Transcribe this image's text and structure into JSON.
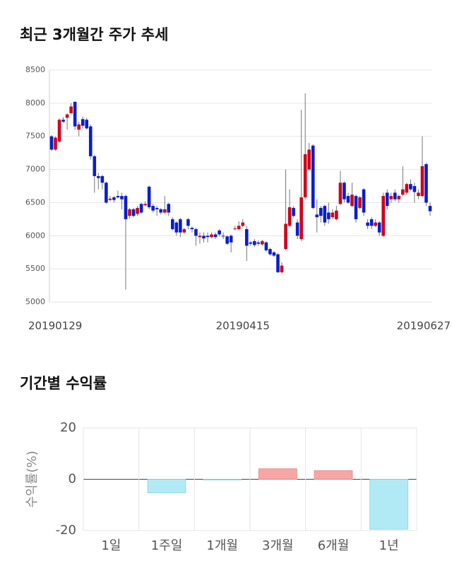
{
  "sections": [
    "최근 3개월간 주가 추세",
    "기간별 수익률"
  ],
  "chart_data": [
    {
      "type": "candlestick",
      "up_color": "#d0021b",
      "down_color": "#0a1ecc",
      "grid": true,
      "ylim": [
        5000,
        8500
      ],
      "yticks": [
        5000,
        5500,
        6000,
        6500,
        7000,
        7500,
        8000,
        8500
      ],
      "categories": [
        "20190129",
        null,
        null,
        null,
        null,
        null,
        null,
        null,
        null,
        null,
        null,
        null,
        null,
        null,
        null,
        null,
        null,
        null,
        null,
        null,
        null,
        null,
        null,
        null,
        null,
        null,
        null,
        null,
        null,
        null,
        null,
        null,
        null,
        null,
        null,
        null,
        null,
        null,
        null,
        null,
        null,
        null,
        null,
        null,
        null,
        null,
        null,
        null,
        null,
        "20190415",
        null,
        null,
        null,
        null,
        null,
        null,
        null,
        null,
        null,
        null,
        null,
        null,
        null,
        null,
        null,
        null,
        null,
        null,
        null,
        null,
        null,
        null,
        null,
        null,
        null,
        null,
        null,
        null,
        null,
        null,
        null,
        null,
        null,
        null,
        null,
        null,
        null,
        null,
        null,
        null,
        null,
        null,
        null,
        null,
        null,
        null,
        null,
        "20190627"
      ],
      "open": [
        7500,
        7300,
        7420,
        7750,
        7780,
        7850,
        8020,
        7600,
        7760,
        7750,
        7650,
        7200,
        6900,
        6900,
        6800,
        6540,
        6580,
        6600,
        6600,
        6600,
        6300,
        6400,
        6330,
        6480,
        6460,
        6740,
        6450,
        6420,
        6400,
        6350,
        6480,
        6250,
        6200,
        6250,
        6050,
        6250,
        6120,
        6100,
        5980,
        6000,
        6000,
        5980,
        6020,
        6080,
        6000,
        5990,
        6000,
        6100,
        6100,
        6150,
        6100,
        5900,
        5920,
        5900,
        5870,
        5900,
        5800,
        5750,
        5720,
        5450,
        5800,
        6150,
        6420,
        6200,
        5950,
        6580,
        7000,
        7360,
        6320,
        6420,
        6450,
        6350,
        6280,
        6250,
        6480,
        6800,
        6600,
        6450,
        6600,
        6420,
        6700,
        6200,
        6250,
        6150,
        6200,
        6000,
        6650,
        6550,
        6650,
        6550,
        6620,
        6650,
        6780,
        6750,
        6600,
        6600,
        7080,
        6450
      ],
      "high": [
        7520,
        7500,
        7770,
        7790,
        7850,
        8000,
        8030,
        7720,
        7800,
        7780,
        7680,
        7220,
        6950,
        6920,
        6820,
        6600,
        6600,
        6680,
        6650,
        6620,
        6420,
        6420,
        6450,
        6500,
        6520,
        6760,
        6480,
        6450,
        6420,
        6600,
        6500,
        6280,
        6220,
        6270,
        6120,
        6270,
        6140,
        6120,
        6050,
        6050,
        6050,
        6050,
        6050,
        6100,
        6050,
        6010,
        6020,
        6150,
        6220,
        6250,
        6150,
        5920,
        5950,
        5930,
        5940,
        5920,
        5820,
        5770,
        5740,
        5600,
        7000,
        6700,
        6450,
        6250,
        7900,
        8150,
        7400,
        7380,
        6550,
        6450,
        6470,
        6500,
        6400,
        6450,
        6980,
        6820,
        6650,
        6800,
        6620,
        6600,
        6720,
        6250,
        6280,
        6250,
        6220,
        6650,
        6700,
        6650,
        6700,
        6620,
        7050,
        6800,
        6850,
        6800,
        6700,
        7500,
        7100,
        6500
      ],
      "low": [
        7280,
        7280,
        7400,
        7700,
        7600,
        7830,
        7600,
        7500,
        7620,
        7600,
        7150,
        6650,
        6700,
        6700,
        6480,
        6520,
        6500,
        6560,
        6400,
        5190,
        6260,
        6280,
        6300,
        6330,
        6440,
        6400,
        6350,
        6300,
        6320,
        6330,
        6300,
        6080,
        6000,
        5980,
        6030,
        6100,
        6050,
        5850,
        5880,
        5900,
        5900,
        5960,
        5950,
        5990,
        5950,
        5860,
        5750,
        6080,
        6080,
        6130,
        5620,
        5850,
        5830,
        5850,
        5850,
        5760,
        5700,
        5680,
        5440,
        5430,
        5780,
        6130,
        6280,
        5950,
        5920,
        6550,
        6980,
        6400,
        6050,
        6200,
        6150,
        6180,
        6250,
        6230,
        6460,
        6500,
        6480,
        6430,
        6200,
        6400,
        6300,
        6100,
        6100,
        6130,
        6000,
        5980,
        6400,
        6500,
        6520,
        6500,
        6600,
        6620,
        6680,
        6500,
        6550,
        6580,
        6450,
        6300
      ],
      "close": [
        7300,
        7480,
        7750,
        7720,
        7830,
        7950,
        7650,
        7680,
        7660,
        7620,
        7200,
        6900,
        6870,
        6800,
        6500,
        6560,
        6540,
        6580,
        6550,
        6250,
        6400,
        6300,
        6420,
        6350,
        6480,
        6430,
        6380,
        6400,
        6350,
        6400,
        6350,
        6100,
        6050,
        6050,
        6100,
        6150,
        6100,
        6000,
        6000,
        5960,
        5980,
        6020,
        5980,
        6020,
        5990,
        5880,
        5900,
        6110,
        6150,
        6200,
        5850,
        5880,
        5860,
        5880,
        5920,
        5780,
        5720,
        5700,
        5450,
        5550,
        6180,
        6430,
        6300,
        6000,
        6580,
        7230,
        7300,
        6420,
        6280,
        6300,
        6200,
        6250,
        6350,
        6380,
        6800,
        6550,
        6500,
        6620,
        6250,
        6580,
        6350,
        6150,
        6150,
        6200,
        6050,
        6600,
        6450,
        6600,
        6550,
        6600,
        6700,
        6780,
        6700,
        6660,
        6650,
        7050,
        6500,
        6370
      ]
    },
    {
      "type": "bar",
      "y_label": "수익률(%)",
      "positive_color": "#f7a6a6",
      "negative_color": "#b1eaf5",
      "grid": true,
      "categories": [
        "1일",
        "1주일",
        "1개월",
        "3개월",
        "6개월",
        "1년"
      ],
      "values": [
        0,
        -5.3,
        -0.3,
        4.1,
        3.4,
        -19.5
      ],
      "ylim": [
        -20,
        20
      ],
      "yticks": [
        -20,
        0,
        20
      ]
    }
  ]
}
